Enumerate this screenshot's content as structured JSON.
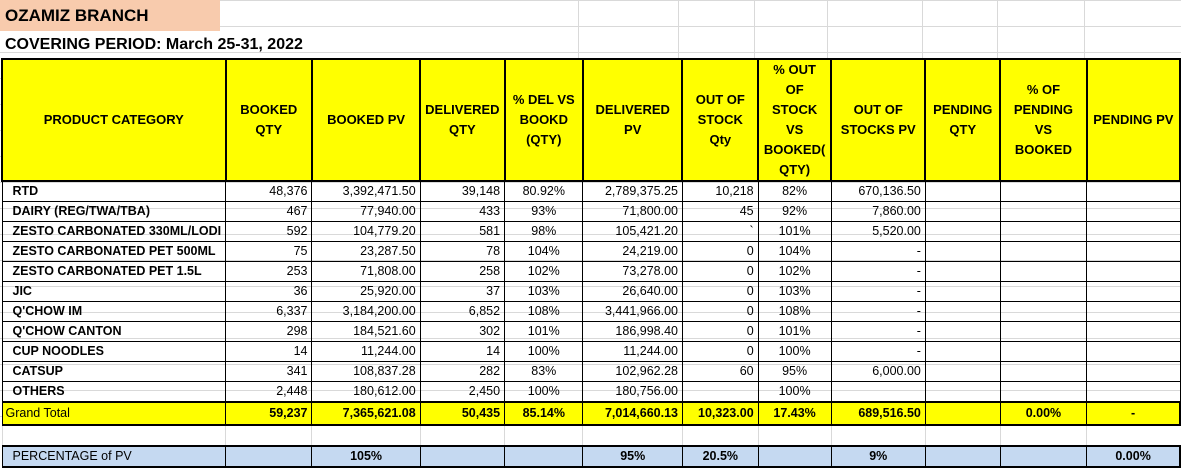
{
  "sheet": {
    "title": "OZAMIZ BRANCH",
    "period": "COVERING PERIOD: March 25-31,  2022"
  },
  "headers": [
    "PRODUCT CATEGORY",
    "BOOKED QTY",
    "BOOKED PV",
    "DELIVERED QTY",
    "% DEL VS BOOKD (QTY)",
    "DELIVERED PV",
    "OUT OF STOCK Qty",
    "% OUT OF STOCK VS BOOKED( QTY)",
    "OUT OF STOCKS PV",
    "PENDING QTY",
    "% OF PENDING VS BOOKED",
    "PENDING PV"
  ],
  "rows": [
    [
      "RTD",
      "48,376",
      "3,392,471.50",
      "39,148",
      "80.92%",
      "2,789,375.25",
      "10,218",
      "82%",
      "670,136.50",
      "",
      "",
      ""
    ],
    [
      "DAIRY (REG/TWA/TBA)",
      "467",
      "77,940.00",
      "433",
      "93%",
      "71,800.00",
      "45",
      "92%",
      "7,860.00",
      "",
      "",
      ""
    ],
    [
      "ZESTO CARBONATED 330ML/LODI",
      "592",
      "104,779.20",
      "581",
      "98%",
      "105,421.20",
      "`",
      "101%",
      "5,520.00",
      "",
      "",
      ""
    ],
    [
      "ZESTO CARBONATED PET 500ML",
      "75",
      "23,287.50",
      "78",
      "104%",
      "24,219.00",
      "0",
      "104%",
      "-",
      "",
      "",
      ""
    ],
    [
      "ZESTO CARBONATED PET 1.5L",
      "253",
      "71,808.00",
      "258",
      "102%",
      "73,278.00",
      "0",
      "102%",
      "-",
      "",
      "",
      ""
    ],
    [
      "JIC",
      "36",
      "25,920.00",
      "37",
      "103%",
      "26,640.00",
      "0",
      "103%",
      "-",
      "",
      "",
      ""
    ],
    [
      "Q'CHOW IM",
      "6,337",
      "3,184,200.00",
      "6,852",
      "108%",
      "3,441,966.00",
      "0",
      "108%",
      "-",
      "",
      "",
      ""
    ],
    [
      "Q'CHOW CANTON",
      "298",
      "184,521.60",
      "302",
      "101%",
      "186,998.40",
      "0",
      "101%",
      "-",
      "",
      "",
      ""
    ],
    [
      "CUP NOODLES",
      "14",
      "11,244.00",
      "14",
      "100%",
      "11,244.00",
      "0",
      "100%",
      "-",
      "",
      "",
      ""
    ],
    [
      "CATSUP",
      "341",
      "108,837.28",
      "282",
      "83%",
      "102,962.28",
      "60",
      "95%",
      "6,000.00",
      "",
      "",
      ""
    ],
    [
      "OTHERS",
      "2,448",
      "180,612.00",
      "2,450",
      "100%",
      "180,756.00",
      "",
      "100%",
      "",
      "",
      "",
      ""
    ]
  ],
  "grand_total": [
    "Grand Total",
    "59,237",
    "7,365,621.08",
    "50,435",
    "85.14%",
    "7,014,660.13",
    "10,323.00",
    "17.43%",
    "689,516.50",
    "",
    "0.00%",
    "-"
  ],
  "percentage_of_pv": [
    "PERCENTAGE of PV",
    "",
    "105%",
    "",
    "",
    "95%",
    "20.5%",
    "",
    "9%",
    "",
    "",
    "0.00%"
  ]
}
